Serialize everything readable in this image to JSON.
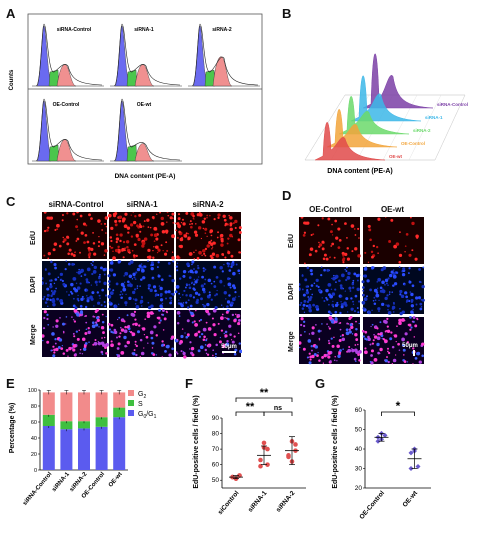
{
  "panels": {
    "A": "A",
    "B": "B",
    "C": "C",
    "D": "D",
    "E": "E",
    "F": "F",
    "G": "G"
  },
  "panelA": {
    "ylabel": "Counts",
    "xlabel": "DNA content (PE-A)",
    "histograms": [
      "siRNA-Control",
      "siRNA-1",
      "siRNA-2",
      "OE-Control",
      "OE-wt"
    ]
  },
  "panelB": {
    "xlabel": "DNA content  (PE-A)",
    "series": [
      "siRNA-Control",
      "siRNA-1",
      "siRNA-2",
      "OE-Control",
      "OE-wt"
    ],
    "colors": [
      "#7b3fa6",
      "#3cb7e8",
      "#6bd96b",
      "#f2a53b",
      "#e04a4a"
    ]
  },
  "panelC": {
    "columns": [
      "siRNA-Control",
      "siRNA-1",
      "siRNA-2"
    ],
    "rows": [
      "EdU",
      "DAPI",
      "Merge"
    ],
    "scale": "50μm"
  },
  "panelD": {
    "columns": [
      "OE-Control",
      "OE-wt"
    ],
    "rows": [
      "EdU",
      "DAPI",
      "Merge"
    ],
    "scale": "50μm"
  },
  "chart_data": [
    {
      "type": "bar",
      "panel": "E",
      "stacked": true,
      "categories": [
        "siRNA-Control",
        "siRNA-1",
        "siRNA-2",
        "OE-Control",
        "OE-wt"
      ],
      "ylabel": "Percentage (%)",
      "ylim": [
        0,
        100
      ],
      "yticks": [
        "0",
        "20",
        "40",
        "60",
        "80",
        "100"
      ],
      "series": [
        {
          "name": "G0/G1",
          "color": "#5b5bef",
          "values": [
            55,
            51,
            52,
            54,
            66
          ]
        },
        {
          "name": "S",
          "color": "#3fbf3f",
          "values": [
            14,
            10,
            9,
            12,
            12
          ]
        },
        {
          "name": "G2",
          "color": "#f28b8b",
          "values": [
            28,
            36,
            36,
            31,
            19
          ]
        }
      ],
      "legend": {
        "G2": "G",
        "G2_sub": "2",
        "S": "S",
        "G0G1": "G",
        "G0G1_sub0": "0",
        "G0G1_mid": "/G",
        "G0G1_sub1": "1"
      }
    },
    {
      "type": "scatter",
      "panel": "F",
      "categories": [
        "siControl",
        "siRNA-1",
        "siRNA-2"
      ],
      "ylabel": "EdU-positive cells / field (%)",
      "ylim": [
        45,
        90
      ],
      "yticks": [
        "50",
        "60",
        "70",
        "80",
        "90"
      ],
      "color": "#e05050",
      "points": [
        [
          52,
          51,
          53,
          52,
          51,
          53
        ],
        [
          59,
          71,
          70,
          63,
          74,
          60
        ],
        [
          66,
          75,
          73,
          65,
          62,
          69
        ]
      ],
      "means": [
        52,
        66,
        69
      ],
      "sd": [
        1,
        6,
        9
      ],
      "sig": [
        {
          "pair": [
            0,
            1
          ],
          "label": "**"
        },
        {
          "pair": [
            0,
            2
          ],
          "label": "**"
        },
        {
          "pair": [
            1,
            2
          ],
          "label": "ns"
        }
      ]
    },
    {
      "type": "scatter",
      "panel": "G",
      "categories": [
        "OE-Control",
        "OE-wt"
      ],
      "ylabel": "EdU-positive cells / field (%)",
      "ylim": [
        20,
        60
      ],
      "yticks": [
        "20",
        "30",
        "40",
        "50",
        "60"
      ],
      "color": "#6a5acd",
      "points": [
        [
          46,
          48,
          47,
          44,
          45
        ],
        [
          38,
          40,
          31,
          30,
          39
        ]
      ],
      "means": [
        46,
        35
      ],
      "sd": [
        2,
        5
      ],
      "sig": [
        {
          "pair": [
            0,
            1
          ],
          "label": "*"
        }
      ]
    }
  ]
}
